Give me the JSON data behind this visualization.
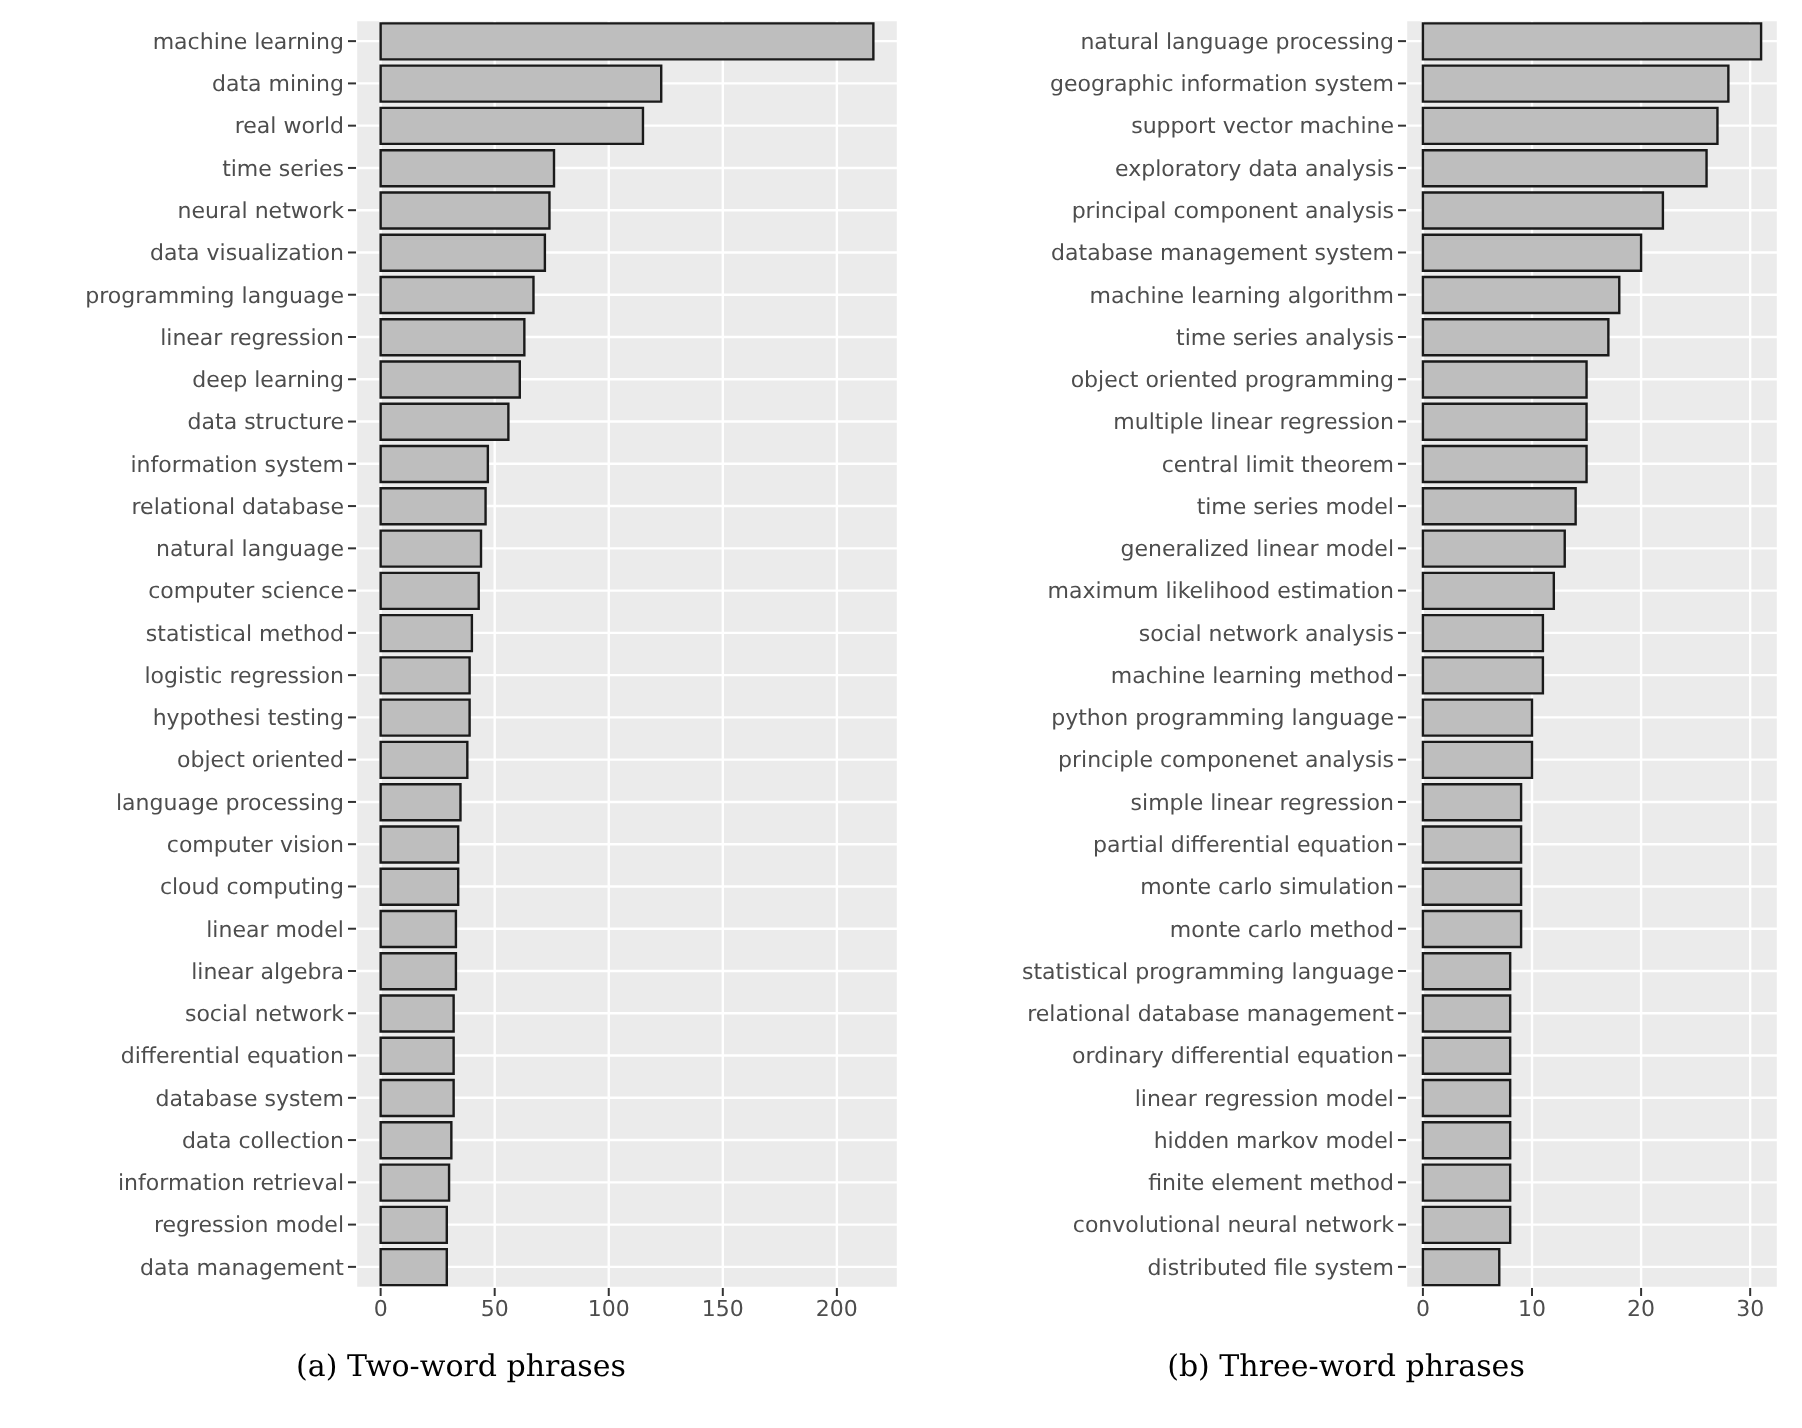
{
  "chart_data": [
    {
      "type": "bar",
      "orientation": "horizontal",
      "title": "(a) Two-word phrases",
      "categories": [
        "machine learning",
        "data mining",
        "real world",
        "time series",
        "neural network",
        "data visualization",
        "programming language",
        "linear regression",
        "deep learning",
        "data structure",
        "information system",
        "relational database",
        "natural language",
        "computer science",
        "statistical method",
        "logistic regression",
        "hypothesi testing",
        "object oriented",
        "language processing",
        "computer vision",
        "cloud computing",
        "linear model",
        "linear algebra",
        "social network",
        "differential equation",
        "database system",
        "data collection",
        "information retrieval",
        "regression model",
        "data management"
      ],
      "values": [
        216,
        123,
        115,
        76,
        74,
        72,
        67,
        63,
        61,
        56,
        47,
        46,
        44,
        43,
        40,
        39,
        39,
        38,
        35,
        34,
        34,
        33,
        33,
        32,
        32,
        32,
        31,
        30,
        29,
        29
      ],
      "color": "#bebebe",
      "xlim": [
        -10.8,
        226.8
      ],
      "xticks": [
        0,
        50,
        100,
        150,
        200
      ],
      "grid": true
    },
    {
      "type": "bar",
      "orientation": "horizontal",
      "title": "(b) Three-word phrases",
      "categories": [
        "natural language processing",
        "geographic information system",
        "support vector machine",
        "exploratory data analysis",
        "principal component analysis",
        "database management system",
        "machine learning algorithm",
        "time series analysis",
        "object oriented programming",
        "multiple linear regression",
        "central limit theorem",
        "time series model",
        "generalized linear model",
        "maximum likelihood estimation",
        "social network analysis",
        "machine learning method",
        "python programming language",
        "principle componenet analysis",
        "simple linear regression",
        "partial differential equation",
        "monte carlo simulation",
        "monte carlo method",
        "statistical programming language",
        "relational database management",
        "ordinary differential equation",
        "linear regression model",
        "hidden markov model",
        "finite element method",
        "convolutional neural network",
        "distributed file system"
      ],
      "values": [
        31,
        28,
        27,
        26,
        22,
        20,
        18,
        17,
        15,
        15,
        15,
        14,
        13,
        12,
        11,
        11,
        10,
        10,
        9,
        9,
        9,
        9,
        8,
        8,
        8,
        8,
        8,
        8,
        8,
        7
      ],
      "color": "#bebebe",
      "xlim": [
        -1.55,
        32.55
      ],
      "xticks": [
        0,
        10,
        20,
        30
      ],
      "grid": true
    }
  ]
}
